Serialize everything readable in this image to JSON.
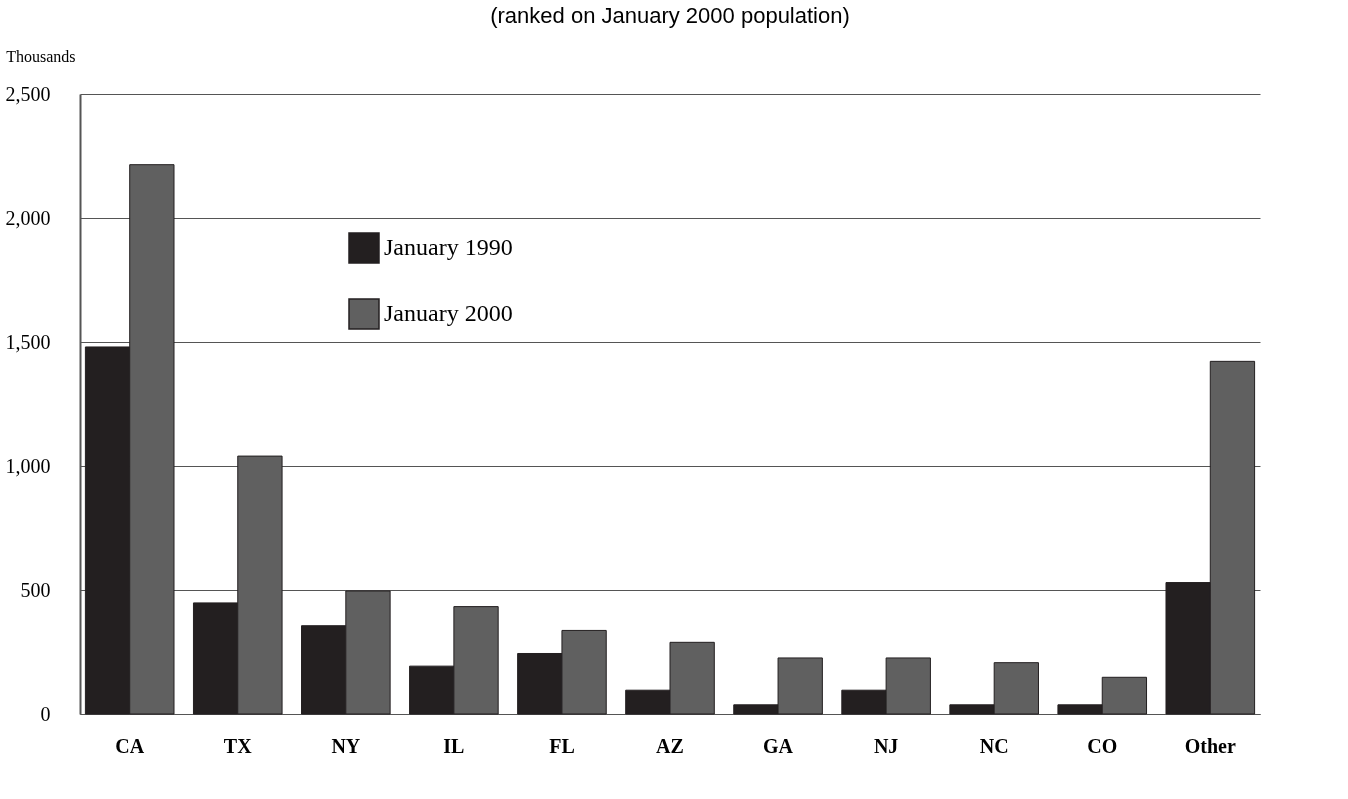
{
  "chart_data": {
    "type": "bar",
    "subtitle": "(ranked on January 2000 population)",
    "ylabel": "Thousands",
    "categories": [
      "CA",
      "TX",
      "NY",
      "IL",
      "FL",
      "AZ",
      "GA",
      "NJ",
      "NC",
      "CO",
      "Other"
    ],
    "series": [
      {
        "name": "January 1990",
        "color": "#231f20",
        "values": [
          1480,
          448,
          356,
          193,
          244,
          96,
          37,
          96,
          37,
          37,
          530
        ]
      },
      {
        "name": "January 2000",
        "color": "#606060",
        "values": [
          2215,
          1040,
          496,
          433,
          337,
          289,
          226,
          226,
          207,
          148,
          1422
        ]
      }
    ],
    "ylim": [
      0,
      2500
    ],
    "yticks": [
      0,
      500,
      {
        "value": 1000,
        "label": "1,000"
      },
      {
        "value": 1500,
        "label": "1,500"
      },
      {
        "value": 2000,
        "label": "2,000"
      },
      {
        "value": 2500,
        "label": "2,500"
      }
    ],
    "grid": "y",
    "legend": "top left"
  }
}
